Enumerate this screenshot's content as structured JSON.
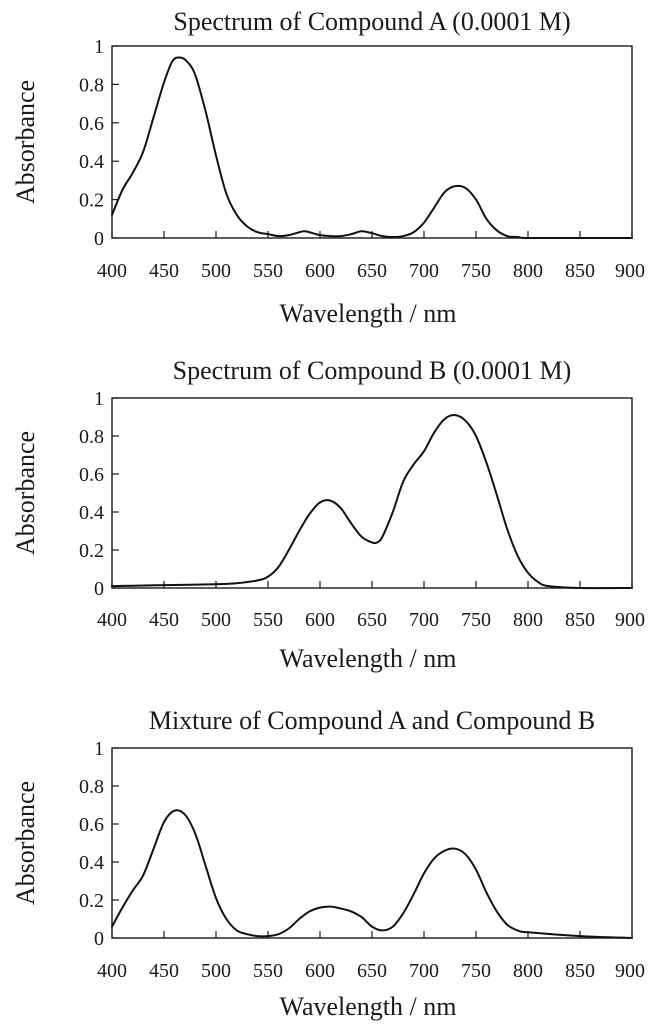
{
  "chart_data": [
    {
      "type": "line",
      "title": "Spectrum of Compound A (0.0001 M)",
      "xlabel": "Wavelength / nm",
      "ylabel": "Absorbance",
      "xlim": [
        400,
        900
      ],
      "ylim": [
        0,
        1
      ],
      "xticks": [
        "400",
        "450",
        "500",
        "550",
        "600",
        "650",
        "700",
        "750",
        "800",
        "850",
        "900"
      ],
      "yticks": [
        "0",
        "0.2",
        "0.4",
        "0.6",
        "0.8",
        "1"
      ],
      "grid": false,
      "series": [
        {
          "x": [
            400,
            410,
            420,
            430,
            440,
            450,
            458,
            465,
            472,
            480,
            490,
            500,
            510,
            520,
            530,
            540,
            550,
            560,
            570,
            580,
            585,
            590,
            600,
            610,
            620,
            630,
            640,
            650,
            660,
            670,
            680,
            690,
            700,
            710,
            720,
            730,
            740,
            750,
            760,
            770,
            780,
            790,
            800,
            850,
            900
          ],
          "y": [
            0.12,
            0.25,
            0.34,
            0.45,
            0.63,
            0.81,
            0.92,
            0.94,
            0.92,
            0.85,
            0.66,
            0.43,
            0.23,
            0.12,
            0.06,
            0.03,
            0.02,
            0.01,
            0.015,
            0.03,
            0.035,
            0.03,
            0.015,
            0.01,
            0.01,
            0.02,
            0.035,
            0.025,
            0.01,
            0.005,
            0.01,
            0.03,
            0.08,
            0.16,
            0.24,
            0.27,
            0.26,
            0.2,
            0.1,
            0.04,
            0.01,
            0.005,
            0.0,
            0.0,
            0.0
          ]
        }
      ]
    },
    {
      "type": "line",
      "title": "Spectrum of Compound B (0.0001 M)",
      "xlabel": "Wavelength / nm",
      "ylabel": "Absorbance",
      "xlim": [
        400,
        900
      ],
      "ylim": [
        0,
        1
      ],
      "xticks": [
        "400",
        "450",
        "500",
        "550",
        "600",
        "650",
        "700",
        "750",
        "800",
        "850",
        "900"
      ],
      "yticks": [
        "0",
        "0.2",
        "0.4",
        "0.6",
        "0.8",
        "1"
      ],
      "grid": false,
      "series": [
        {
          "x": [
            400,
            450,
            500,
            520,
            540,
            550,
            560,
            570,
            580,
            590,
            600,
            610,
            620,
            630,
            640,
            650,
            655,
            660,
            670,
            680,
            690,
            700,
            710,
            720,
            730,
            740,
            750,
            760,
            770,
            780,
            790,
            800,
            810,
            820,
            850,
            900
          ],
          "y": [
            0.01,
            0.015,
            0.02,
            0.025,
            0.04,
            0.06,
            0.11,
            0.2,
            0.3,
            0.39,
            0.45,
            0.46,
            0.42,
            0.34,
            0.27,
            0.24,
            0.24,
            0.27,
            0.4,
            0.56,
            0.65,
            0.72,
            0.82,
            0.89,
            0.91,
            0.88,
            0.8,
            0.66,
            0.49,
            0.31,
            0.17,
            0.08,
            0.03,
            0.01,
            0.0,
            0.0
          ]
        }
      ]
    },
    {
      "type": "line",
      "title": "Mixture of Compound A and Compound B",
      "xlabel": "Wavelength / nm",
      "ylabel": "Absorbance",
      "xlim": [
        400,
        900
      ],
      "ylim": [
        0,
        1
      ],
      "xticks": [
        "400",
        "450",
        "500",
        "550",
        "600",
        "650",
        "700",
        "750",
        "800",
        "850",
        "900"
      ],
      "yticks": [
        "0",
        "0.2",
        "0.4",
        "0.6",
        "0.8",
        "1"
      ],
      "grid": false,
      "series": [
        {
          "x": [
            400,
            410,
            420,
            430,
            440,
            450,
            460,
            470,
            480,
            490,
            500,
            510,
            520,
            530,
            540,
            550,
            560,
            570,
            580,
            590,
            600,
            610,
            620,
            630,
            640,
            650,
            660,
            670,
            680,
            690,
            700,
            710,
            720,
            730,
            740,
            750,
            760,
            770,
            780,
            790,
            800,
            850,
            900
          ],
          "y": [
            0.06,
            0.16,
            0.25,
            0.33,
            0.47,
            0.61,
            0.67,
            0.65,
            0.55,
            0.38,
            0.21,
            0.1,
            0.04,
            0.02,
            0.01,
            0.01,
            0.02,
            0.05,
            0.1,
            0.14,
            0.16,
            0.165,
            0.155,
            0.14,
            0.11,
            0.06,
            0.04,
            0.06,
            0.13,
            0.23,
            0.34,
            0.42,
            0.46,
            0.47,
            0.44,
            0.36,
            0.24,
            0.14,
            0.07,
            0.04,
            0.03,
            0.01,
            0.0
          ]
        }
      ]
    }
  ]
}
